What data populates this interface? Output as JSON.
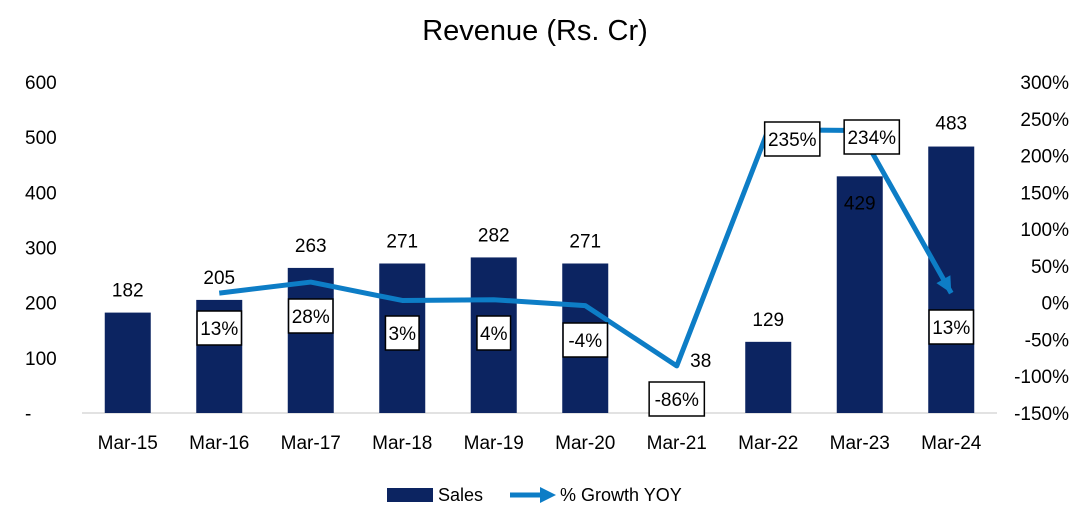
{
  "chart_data": {
    "type": "bar",
    "title": "Revenue (Rs. Cr)",
    "categories": [
      "Mar-15",
      "Mar-16",
      "Mar-17",
      "Mar-18",
      "Mar-19",
      "Mar-20",
      "Mar-21",
      "Mar-22",
      "Mar-23",
      "Mar-24"
    ],
    "series": [
      {
        "name": "Sales",
        "type": "bar",
        "axis": "left",
        "color": "#0c2461",
        "values": [
          182,
          205,
          263,
          271,
          282,
          271,
          38,
          129,
          429,
          483
        ]
      },
      {
        "name": "% Growth YOY",
        "type": "line",
        "axis": "right",
        "color": "#0d7dc6",
        "values": [
          null,
          13,
          28,
          3,
          4,
          -4,
          -86,
          235,
          234,
          13
        ],
        "labels": [
          null,
          "13%",
          "28%",
          "3%",
          "4%",
          "-4%",
          "-86%",
          "235%",
          "234%",
          "13%"
        ]
      }
    ],
    "y_left": {
      "ylim": [
        0,
        600
      ],
      "ticks": [
        0,
        100,
        200,
        300,
        400,
        500,
        600
      ],
      "tick_labels": [
        "-",
        "100",
        "200",
        "300",
        "400",
        "500",
        "600"
      ]
    },
    "y_right": {
      "ylim": [
        -150,
        300
      ],
      "ticks": [
        -150,
        -100,
        -50,
        0,
        50,
        100,
        150,
        200,
        250,
        300
      ],
      "tick_labels": [
        "-150%",
        "-100%",
        "-50%",
        "0%",
        "50%",
        "100%",
        "150%",
        "200%",
        "250%",
        "300%"
      ]
    },
    "bar_value_labels": [
      "182",
      "205",
      "263",
      "271",
      "282",
      "271",
      "38",
      "129",
      "429",
      "483"
    ],
    "legend": {
      "position": "bottom",
      "entries": [
        "Sales",
        "% Growth YOY"
      ]
    },
    "grid": false
  }
}
